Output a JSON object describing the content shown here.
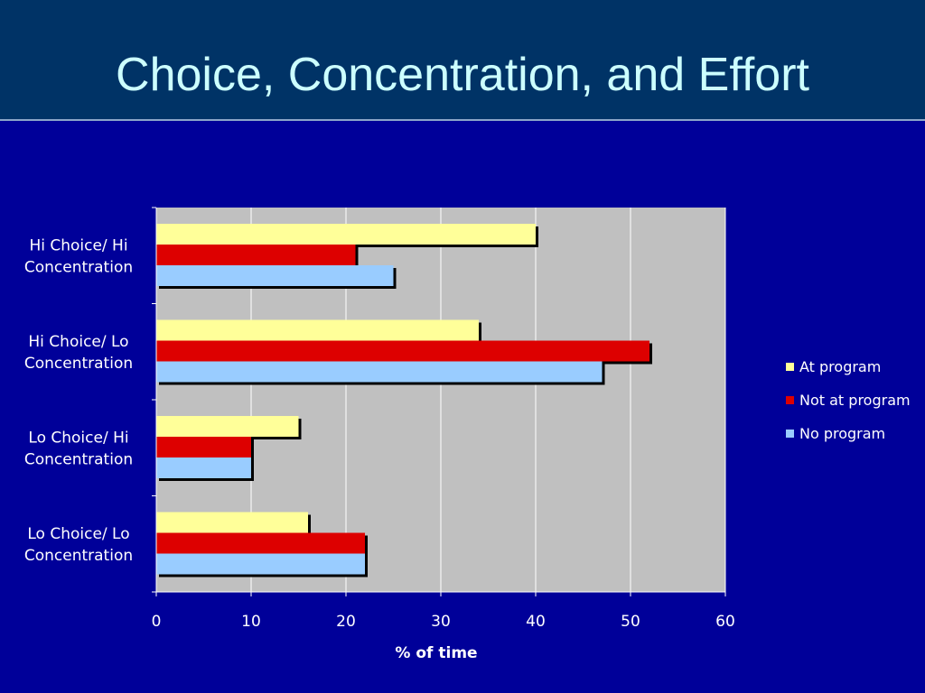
{
  "slide": {
    "title": "Choice, Concentration, and Effort"
  },
  "colors": {
    "background": "#000099",
    "title_bar": "#003366",
    "title_text": "#ccffff",
    "plot_area": "#c0c0c0",
    "gridline": "#ffffff"
  },
  "chart_data": {
    "type": "bar",
    "orientation": "horizontal",
    "categories": [
      [
        "Hi Choice/ Hi",
        "Concentration"
      ],
      [
        "Hi Choice/ Lo",
        "Concentration"
      ],
      [
        "Lo Choice/ Hi",
        "Concentration"
      ],
      [
        "Lo Choice/ Lo",
        "Concentration"
      ]
    ],
    "series": [
      {
        "name": "At program",
        "color": "#ffff99",
        "values": [
          40,
          34,
          15,
          16
        ]
      },
      {
        "name": "Not at program",
        "color": "#dd0000",
        "values": [
          21,
          52,
          10,
          22
        ]
      },
      {
        "name": "No program",
        "color": "#99ccff",
        "values": [
          25,
          47,
          10,
          22
        ]
      }
    ],
    "xlabel": "% of time",
    "ylabel": "",
    "xlim": [
      0,
      60
    ],
    "xticks": [
      0,
      10,
      20,
      30,
      40,
      50,
      60
    ],
    "grid": "vertical",
    "legend_position": "right"
  }
}
